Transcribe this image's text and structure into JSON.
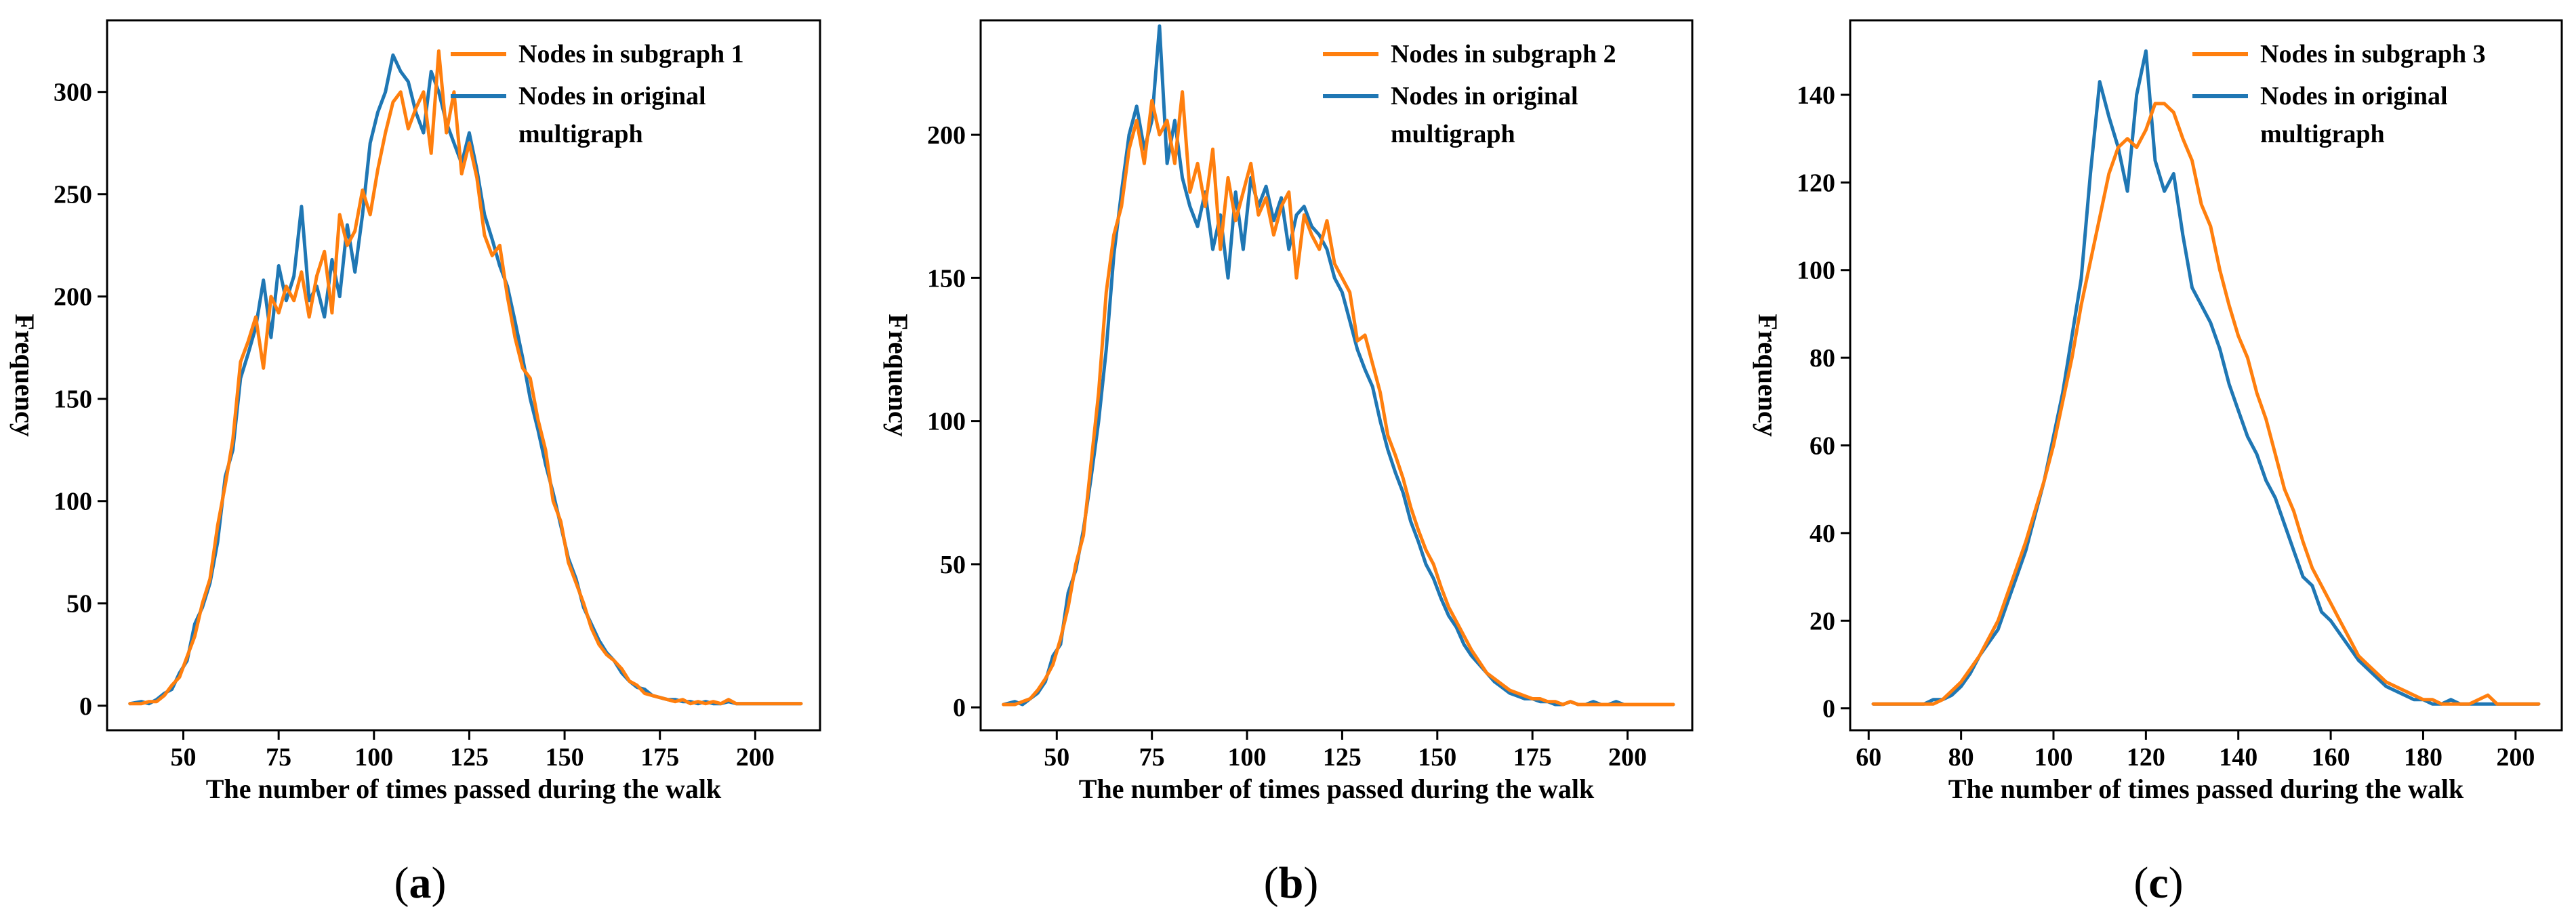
{
  "chart_data": [
    {
      "type": "line",
      "panel_label": "(a)",
      "caption_letter": "a",
      "xlabel": "The number of times passed during the walk",
      "ylabel": "Frequency",
      "xlim": [
        30,
        217
      ],
      "ylim": [
        -12,
        335
      ],
      "xticks": [
        50,
        75,
        100,
        125,
        150,
        175,
        200
      ],
      "yticks": [
        0,
        50,
        100,
        150,
        200,
        250,
        300
      ],
      "legend_position": "top-right",
      "series": [
        {
          "name": "Nodes in subgraph 1",
          "color": "#ff7f0e",
          "x": [
            36,
            39,
            41,
            43,
            45,
            47,
            49,
            51,
            53,
            55,
            57,
            59,
            61,
            63,
            65,
            67,
            69,
            71,
            73,
            75,
            77,
            79,
            81,
            83,
            85,
            87,
            89,
            91,
            93,
            95,
            97,
            99,
            101,
            103,
            105,
            107,
            109,
            111,
            113,
            115,
            117,
            119,
            121,
            123,
            125,
            127,
            129,
            131,
            133,
            135,
            137,
            139,
            141,
            143,
            145,
            147,
            149,
            151,
            153,
            155,
            157,
            159,
            161,
            163,
            165,
            167,
            169,
            171,
            173,
            175,
            177,
            179,
            181,
            183,
            185,
            187,
            189,
            191,
            193,
            195,
            197,
            199,
            201,
            203,
            205,
            207,
            209,
            212
          ],
          "values": [
            1,
            1,
            2,
            2,
            5,
            10,
            14,
            24,
            34,
            50,
            62,
            88,
            108,
            130,
            168,
            178,
            190,
            165,
            200,
            192,
            205,
            198,
            212,
            190,
            210,
            222,
            192,
            240,
            225,
            232,
            252,
            240,
            262,
            280,
            295,
            300,
            282,
            292,
            300,
            270,
            320,
            280,
            300,
            260,
            275,
            258,
            230,
            220,
            225,
            200,
            180,
            165,
            160,
            140,
            125,
            100,
            90,
            70,
            60,
            50,
            38,
            30,
            25,
            22,
            18,
            12,
            10,
            6,
            5,
            4,
            3,
            2,
            3,
            1,
            2,
            1,
            2,
            1,
            3,
            1,
            1,
            1,
            1,
            1,
            1,
            1,
            1,
            1
          ]
        },
        {
          "name": "Nodes in original multigraph",
          "color": "#1f77b4",
          "x": [
            36,
            39,
            41,
            43,
            45,
            47,
            49,
            51,
            53,
            55,
            57,
            59,
            61,
            63,
            65,
            67,
            69,
            71,
            73,
            75,
            77,
            79,
            81,
            83,
            85,
            87,
            89,
            91,
            93,
            95,
            97,
            99,
            101,
            103,
            105,
            107,
            109,
            111,
            113,
            115,
            117,
            119,
            121,
            123,
            125,
            127,
            129,
            131,
            133,
            135,
            137,
            139,
            141,
            143,
            145,
            147,
            149,
            151,
            153,
            155,
            157,
            159,
            161,
            163,
            165,
            167,
            169,
            171,
            173,
            175,
            177,
            179,
            181,
            183,
            185,
            187,
            189,
            191,
            193,
            195,
            197,
            199,
            201,
            203,
            205,
            207,
            209,
            212
          ],
          "values": [
            1,
            2,
            1,
            3,
            6,
            8,
            16,
            22,
            40,
            48,
            60,
            80,
            112,
            125,
            160,
            172,
            185,
            208,
            180,
            215,
            198,
            210,
            244,
            198,
            205,
            190,
            218,
            200,
            235,
            212,
            240,
            275,
            290,
            300,
            318,
            310,
            305,
            290,
            280,
            310,
            300,
            285,
            275,
            265,
            280,
            262,
            240,
            228,
            215,
            205,
            188,
            170,
            150,
            135,
            118,
            104,
            88,
            72,
            62,
            48,
            40,
            32,
            26,
            22,
            16,
            12,
            9,
            8,
            5,
            4,
            3,
            3,
            2,
            2,
            1,
            2,
            1,
            1,
            2,
            1,
            1,
            1,
            1,
            1,
            1,
            1,
            1,
            1
          ]
        }
      ]
    },
    {
      "type": "line",
      "panel_label": "(b)",
      "caption_letter": "b",
      "xlabel": "The number of times passed during the walk",
      "ylabel": "Frequency",
      "xlim": [
        30,
        217
      ],
      "ylim": [
        -8,
        240
      ],
      "xticks": [
        50,
        75,
        100,
        125,
        150,
        175,
        200
      ],
      "yticks": [
        0,
        50,
        100,
        150,
        200
      ],
      "legend_position": "top-right",
      "series": [
        {
          "name": "Nodes in subgraph 2",
          "color": "#ff7f0e",
          "x": [
            36,
            39,
            41,
            43,
            45,
            47,
            49,
            51,
            53,
            55,
            57,
            59,
            61,
            63,
            65,
            67,
            69,
            71,
            73,
            75,
            77,
            79,
            81,
            83,
            85,
            87,
            89,
            91,
            93,
            95,
            97,
            99,
            101,
            103,
            105,
            107,
            109,
            111,
            113,
            115,
            117,
            119,
            121,
            123,
            125,
            127,
            129,
            131,
            133,
            135,
            137,
            139,
            141,
            143,
            145,
            147,
            149,
            151,
            153,
            155,
            157,
            159,
            161,
            163,
            165,
            167,
            169,
            171,
            173,
            175,
            177,
            179,
            181,
            183,
            185,
            187,
            189,
            191,
            193,
            195,
            197,
            199,
            201,
            203,
            205,
            207,
            209,
            212
          ],
          "values": [
            1,
            1,
            2,
            3,
            6,
            10,
            15,
            24,
            35,
            50,
            60,
            85,
            110,
            145,
            165,
            175,
            195,
            205,
            190,
            212,
            200,
            205,
            190,
            215,
            180,
            190,
            175,
            195,
            160,
            185,
            170,
            180,
            190,
            172,
            178,
            165,
            175,
            180,
            150,
            172,
            165,
            160,
            170,
            155,
            150,
            145,
            128,
            130,
            120,
            110,
            95,
            88,
            80,
            70,
            62,
            55,
            50,
            42,
            35,
            30,
            25,
            20,
            16,
            12,
            10,
            8,
            6,
            5,
            4,
            3,
            3,
            2,
            2,
            1,
            2,
            1,
            1,
            1,
            1,
            1,
            1,
            1,
            1,
            1,
            1,
            1,
            1,
            1
          ]
        },
        {
          "name": "Nodes in original multigraph",
          "color": "#1f77b4",
          "x": [
            36,
            39,
            41,
            43,
            45,
            47,
            49,
            51,
            53,
            55,
            57,
            59,
            61,
            63,
            65,
            67,
            69,
            71,
            73,
            75,
            77,
            79,
            81,
            83,
            85,
            87,
            89,
            91,
            93,
            95,
            97,
            99,
            101,
            103,
            105,
            107,
            109,
            111,
            113,
            115,
            117,
            119,
            121,
            123,
            125,
            127,
            129,
            131,
            133,
            135,
            137,
            139,
            141,
            143,
            145,
            147,
            149,
            151,
            153,
            155,
            157,
            159,
            161,
            163,
            165,
            167,
            169,
            171,
            173,
            175,
            177,
            179,
            181,
            183,
            185,
            187,
            189,
            191,
            193,
            195,
            197,
            199,
            201,
            203,
            205,
            207,
            209,
            212
          ],
          "values": [
            1,
            2,
            1,
            3,
            5,
            9,
            18,
            22,
            40,
            48,
            62,
            80,
            100,
            125,
            158,
            180,
            200,
            210,
            195,
            205,
            238,
            190,
            205,
            185,
            175,
            168,
            180,
            160,
            172,
            150,
            180,
            160,
            185,
            175,
            182,
            170,
            178,
            160,
            172,
            175,
            168,
            165,
            160,
            150,
            145,
            135,
            125,
            118,
            112,
            100,
            90,
            82,
            75,
            65,
            58,
            50,
            45,
            38,
            32,
            28,
            22,
            18,
            15,
            12,
            9,
            7,
            5,
            4,
            3,
            3,
            2,
            2,
            1,
            1,
            2,
            1,
            1,
            2,
            1,
            1,
            2,
            1,
            1,
            1,
            1,
            1,
            1,
            1
          ]
        }
      ]
    },
    {
      "type": "line",
      "panel_label": "(c)",
      "caption_letter": "c",
      "xlabel": "The number of times passed during the walk",
      "ylabel": "Frequency",
      "xlim": [
        56,
        210
      ],
      "ylim": [
        -5,
        157
      ],
      "xticks": [
        60,
        80,
        100,
        120,
        140,
        160,
        180,
        200
      ],
      "yticks": [
        0,
        20,
        40,
        60,
        80,
        100,
        120,
        140
      ],
      "legend_position": "top-right",
      "series": [
        {
          "name": "Nodes in subgraph 3",
          "color": "#ff7f0e",
          "x": [
            61,
            64,
            67,
            70,
            72,
            74,
            76,
            78,
            80,
            82,
            84,
            86,
            88,
            90,
            92,
            94,
            96,
            98,
            100,
            102,
            104,
            106,
            108,
            110,
            112,
            114,
            116,
            118,
            120,
            122,
            124,
            126,
            128,
            130,
            132,
            134,
            136,
            138,
            140,
            142,
            144,
            146,
            148,
            150,
            152,
            154,
            156,
            158,
            160,
            162,
            164,
            166,
            168,
            170,
            172,
            174,
            176,
            178,
            180,
            182,
            184,
            186,
            188,
            190,
            192,
            194,
            196,
            198,
            200,
            202,
            205
          ],
          "values": [
            1,
            1,
            1,
            1,
            1,
            1,
            2,
            4,
            6,
            9,
            12,
            16,
            20,
            26,
            32,
            38,
            45,
            52,
            60,
            70,
            80,
            92,
            102,
            112,
            122,
            128,
            130,
            128,
            132,
            138,
            138,
            136,
            130,
            125,
            115,
            110,
            100,
            92,
            85,
            80,
            72,
            66,
            58,
            50,
            45,
            38,
            32,
            28,
            24,
            20,
            16,
            12,
            10,
            8,
            6,
            5,
            4,
            3,
            2,
            2,
            1,
            1,
            1,
            1,
            2,
            3,
            1,
            1,
            1,
            1,
            1
          ]
        },
        {
          "name": "Nodes in original multigraph",
          "color": "#1f77b4",
          "x": [
            61,
            64,
            67,
            70,
            72,
            74,
            76,
            78,
            80,
            82,
            84,
            86,
            88,
            90,
            92,
            94,
            96,
            98,
            100,
            102,
            104,
            106,
            108,
            110,
            112,
            114,
            116,
            118,
            120,
            122,
            124,
            126,
            128,
            130,
            132,
            134,
            136,
            138,
            140,
            142,
            144,
            146,
            148,
            150,
            152,
            154,
            156,
            158,
            160,
            162,
            164,
            166,
            168,
            170,
            172,
            174,
            176,
            178,
            180,
            182,
            184,
            186,
            188,
            190,
            192,
            194,
            196,
            198,
            200,
            202,
            205
          ],
          "values": [
            1,
            1,
            1,
            1,
            1,
            2,
            2,
            3,
            5,
            8,
            12,
            15,
            18,
            24,
            30,
            36,
            44,
            52,
            62,
            72,
            85,
            98,
            122,
            143,
            135,
            128,
            118,
            140,
            150,
            125,
            118,
            122,
            108,
            96,
            92,
            88,
            82,
            74,
            68,
            62,
            58,
            52,
            48,
            42,
            36,
            30,
            28,
            22,
            20,
            17,
            14,
            11,
            9,
            7,
            5,
            4,
            3,
            2,
            2,
            1,
            1,
            2,
            1,
            1,
            1,
            1,
            1,
            1,
            1,
            1,
            1
          ]
        }
      ]
    }
  ]
}
